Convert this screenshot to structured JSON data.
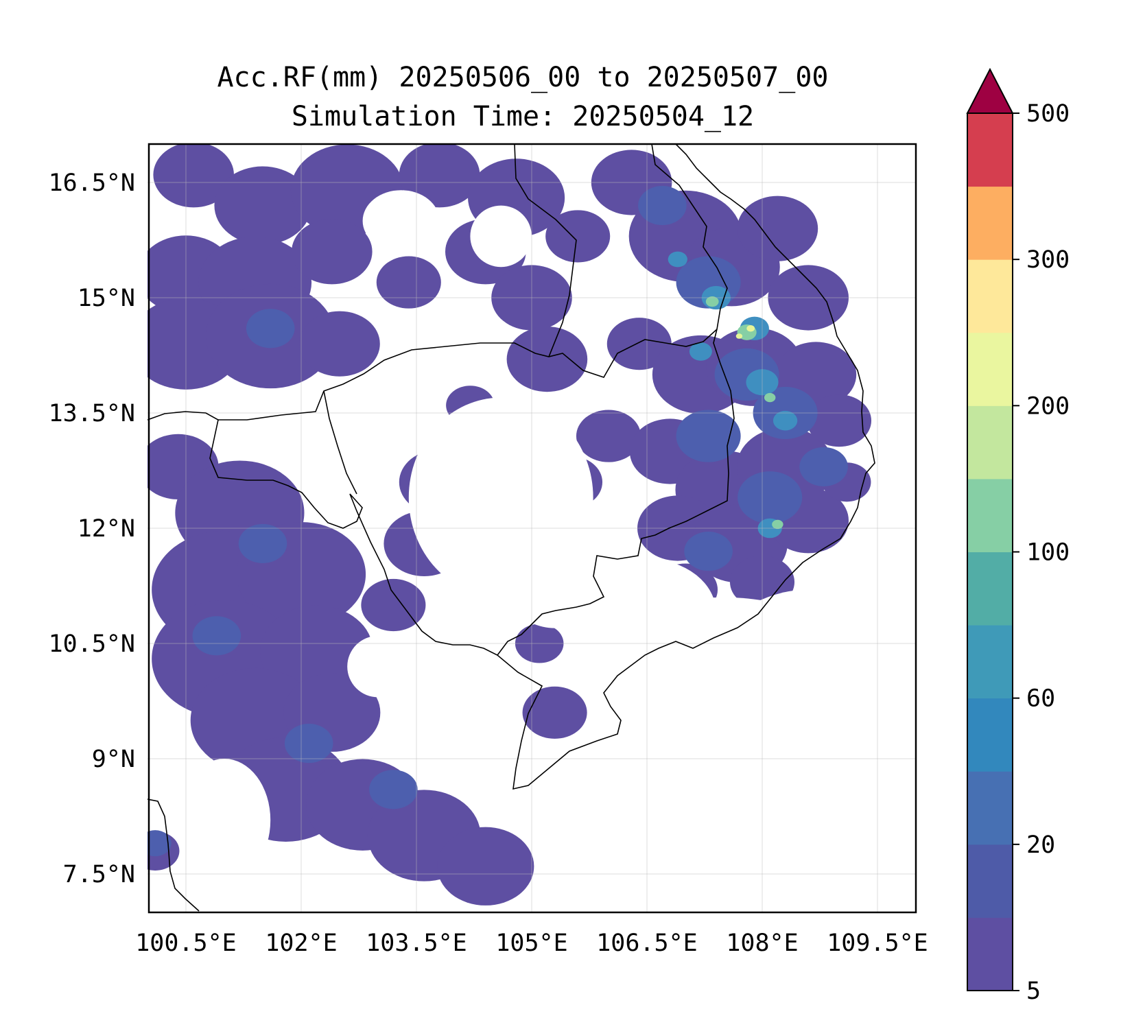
{
  "title": {
    "line1": "Acc.RF(mm) 20250506_00 to 20250507_00",
    "line2": "Simulation Time: 20250504_12"
  },
  "map": {
    "lon_range": [
      100.0,
      110.0
    ],
    "lat_range": [
      7.0,
      17.0
    ],
    "grid": true,
    "lat_ticks": [
      {
        "value": 16.5,
        "label": "16.5°N"
      },
      {
        "value": 15.0,
        "label": "15°N"
      },
      {
        "value": 13.5,
        "label": "13.5°N"
      },
      {
        "value": 12.0,
        "label": "12°N"
      },
      {
        "value": 10.5,
        "label": "10.5°N"
      },
      {
        "value": 9.0,
        "label": "9°N"
      },
      {
        "value": 7.5,
        "label": "7.5°N"
      }
    ],
    "lon_ticks": [
      {
        "value": 100.5,
        "label": "100.5°E"
      },
      {
        "value": 102.0,
        "label": "102°E"
      },
      {
        "value": 103.5,
        "label": "103.5°E"
      },
      {
        "value": 105.0,
        "label": "105°E"
      },
      {
        "value": 106.5,
        "label": "106.5°E"
      },
      {
        "value": 108.0,
        "label": "108°E"
      },
      {
        "value": 109.5,
        "label": "109.5°E"
      }
    ],
    "rain_fields": [
      {
        "color": "#5e4fa2",
        "blobs": [
          [
            100.6,
            16.6,
            0.5
          ],
          [
            101.5,
            16.2,
            0.6
          ],
          [
            102.6,
            16.4,
            0.7
          ],
          [
            103.8,
            16.6,
            0.5
          ],
          [
            104.8,
            16.3,
            0.6
          ],
          [
            100.5,
            15.3,
            0.6
          ],
          [
            101.4,
            15.2,
            0.7
          ],
          [
            102.4,
            15.6,
            0.5
          ],
          [
            103.4,
            15.2,
            0.4
          ],
          [
            104.4,
            15.6,
            0.5
          ],
          [
            100.5,
            14.4,
            0.7
          ],
          [
            101.6,
            14.5,
            0.8
          ],
          [
            102.5,
            14.4,
            0.5
          ],
          [
            105.0,
            15.0,
            0.5
          ],
          [
            105.2,
            14.2,
            0.5
          ],
          [
            100.4,
            12.8,
            0.5
          ],
          [
            101.2,
            12.2,
            0.8
          ],
          [
            101.0,
            11.2,
            0.9
          ],
          [
            102.0,
            11.4,
            0.8
          ],
          [
            101.0,
            10.3,
            0.9
          ],
          [
            102.2,
            10.4,
            0.7
          ],
          [
            101.4,
            9.5,
            0.8
          ],
          [
            102.4,
            9.6,
            0.6
          ],
          [
            101.8,
            8.6,
            0.8
          ],
          [
            102.8,
            8.4,
            0.7
          ],
          [
            103.6,
            8.0,
            0.7
          ],
          [
            104.4,
            7.6,
            0.6
          ],
          [
            103.8,
            12.6,
            0.5
          ],
          [
            103.6,
            11.8,
            0.5
          ],
          [
            103.2,
            11.0,
            0.4
          ],
          [
            104.2,
            13.6,
            0.3
          ],
          [
            104.8,
            12.8,
            0.3
          ],
          [
            105.5,
            12.6,
            0.4
          ],
          [
            106.0,
            13.2,
            0.4
          ],
          [
            106.4,
            14.4,
            0.4
          ],
          [
            107.0,
            15.8,
            0.7
          ],
          [
            107.6,
            15.4,
            0.6
          ],
          [
            108.2,
            15.9,
            0.5
          ],
          [
            108.6,
            15.0,
            0.5
          ],
          [
            107.2,
            14.0,
            0.6
          ],
          [
            107.9,
            14.1,
            0.6
          ],
          [
            108.7,
            14.0,
            0.5
          ],
          [
            106.8,
            13.0,
            0.5
          ],
          [
            107.5,
            12.5,
            0.6
          ],
          [
            108.3,
            12.8,
            0.6
          ],
          [
            109.0,
            13.4,
            0.4
          ],
          [
            106.9,
            12.0,
            0.5
          ],
          [
            107.7,
            11.8,
            0.6
          ],
          [
            108.6,
            12.1,
            0.5
          ],
          [
            109.1,
            12.6,
            0.3
          ],
          [
            107.0,
            11.2,
            0.4
          ],
          [
            108.0,
            11.3,
            0.4
          ],
          [
            105.3,
            9.6,
            0.4
          ],
          [
            105.1,
            10.5,
            0.3
          ],
          [
            100.1,
            7.8,
            0.3
          ],
          [
            106.3,
            16.5,
            0.5
          ],
          [
            105.6,
            15.8,
            0.4
          ]
        ]
      },
      {
        "color": "#4d5fae",
        "blobs": [
          [
            101.6,
            14.6,
            0.3
          ],
          [
            101.5,
            11.8,
            0.3
          ],
          [
            100.9,
            10.6,
            0.3
          ],
          [
            102.1,
            9.2,
            0.3
          ],
          [
            103.2,
            8.6,
            0.3
          ],
          [
            107.3,
            15.2,
            0.4
          ],
          [
            107.8,
            14.0,
            0.4
          ],
          [
            108.3,
            13.5,
            0.4
          ],
          [
            107.3,
            13.2,
            0.4
          ],
          [
            108.1,
            12.4,
            0.4
          ],
          [
            108.8,
            12.8,
            0.3
          ],
          [
            107.3,
            11.7,
            0.3
          ],
          [
            106.7,
            16.2,
            0.3
          ],
          [
            100.1,
            7.9,
            0.2
          ]
        ]
      },
      {
        "color": "#3f8fc0",
        "blobs": [
          [
            107.4,
            15.0,
            0.18
          ],
          [
            107.9,
            14.6,
            0.18
          ],
          [
            108.0,
            13.9,
            0.2
          ],
          [
            108.3,
            13.4,
            0.15
          ],
          [
            108.1,
            12.0,
            0.15
          ],
          [
            107.2,
            14.3,
            0.14
          ],
          [
            106.9,
            15.5,
            0.12
          ]
        ]
      },
      {
        "color": "#86cfa5",
        "blobs": [
          [
            107.8,
            14.55,
            0.12
          ],
          [
            107.35,
            14.95,
            0.08
          ],
          [
            108.2,
            12.05,
            0.07
          ],
          [
            108.1,
            13.7,
            0.07
          ]
        ]
      },
      {
        "color": "#e6f598",
        "blobs": [
          [
            107.85,
            14.6,
            0.05
          ],
          [
            107.7,
            14.5,
            0.04
          ]
        ]
      }
    ],
    "blank_regions": [
      [
        104.6,
        12.4,
        1.2,
        1.3
      ],
      [
        105.3,
        11.6,
        0.8,
        0.9
      ],
      [
        103.3,
        16.0,
        0.5,
        0.4
      ],
      [
        104.6,
        15.8,
        0.4,
        0.4
      ],
      [
        106.5,
        10.9,
        0.9,
        0.7
      ],
      [
        107.5,
        10.3,
        1.6,
        0.8
      ],
      [
        108.6,
        9.0,
        1.8,
        2.2
      ],
      [
        106.5,
        8.2,
        1.5,
        1.0
      ],
      [
        101.0,
        8.2,
        0.6,
        0.8
      ],
      [
        103.0,
        10.2,
        0.4,
        0.4
      ]
    ]
  },
  "colorbar": {
    "levels": [
      5,
      10,
      20,
      40,
      60,
      80,
      100,
      150,
      200,
      250,
      300,
      400,
      500
    ],
    "colors": [
      "#5e4fa2",
      "#4e5ba8",
      "#4770b3",
      "#3288bd",
      "#3f9ab8",
      "#52ada6",
      "#86cfa5",
      "#c3e79e",
      "#eaf69f",
      "#fee89a",
      "#fdae61",
      "#d53e4f"
    ],
    "extend_color": "#9e0142",
    "tick_labels": [
      "5",
      "20",
      "60",
      "100",
      "200",
      "300",
      "500"
    ],
    "tick_indices": [
      0,
      2,
      4,
      6,
      8,
      10,
      12
    ]
  }
}
